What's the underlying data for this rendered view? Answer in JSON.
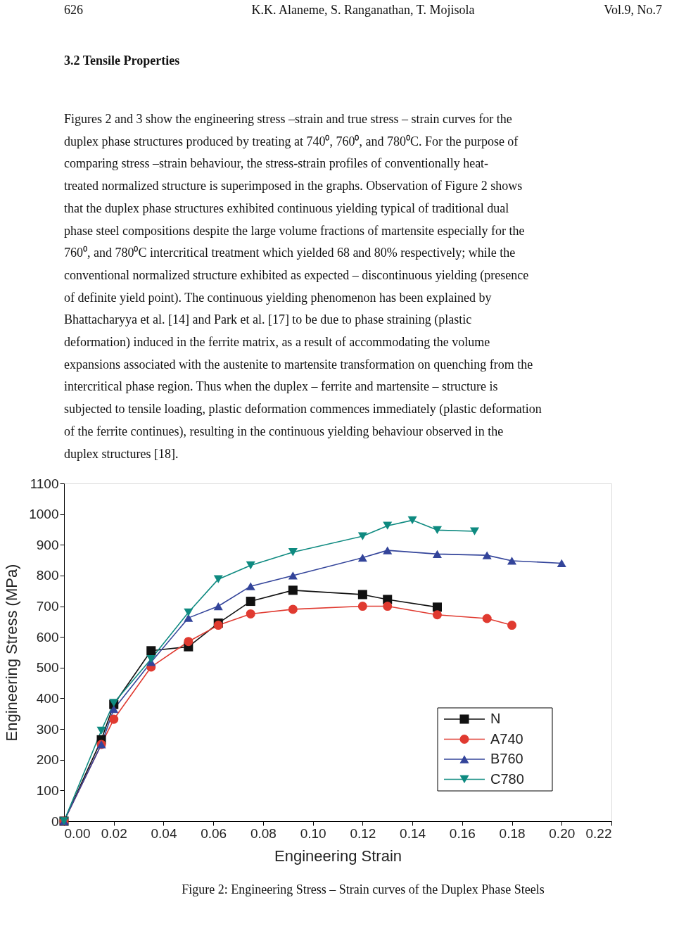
{
  "chart_data": {
    "type": "line",
    "xlabel": "Engineering Strain",
    "ylabel": "Engineering Stress (MPa)",
    "annotations": [
      "626",
      "K.K. Alaneme, S. Ranganathan, T. Mojisola",
      "Vol.9, No.7",
      "3.2 Tensile Properties",
      "Figures 2 and 3 show the engineering stress –strain and true stress – strain curves for the duplex phase structures produced by treating at 740⁰, 760⁰, and 780⁰C. For the purpose of comparing stress –strain behaviour, the stress-strain profiles of conventionally heat-treated normalized structure is superimposed in the graphs. Observation of Figure 2 shows that the duplex phase structures exhibited continuous yielding typical of traditional dual phase steel compositions despite the large volume fractions of martensite especially for the 760⁰, and 780⁰C intercritical treatment which yielded 68 and 80% respectively; while the conventional normalized structure exhibited as expected – discontinuous yielding (presence of definite yield point). The continuous yielding phenomenon has been explained by Bhattacharyya et al. [14]  and Park et al. [17] to be due to phase straining (plastic deformation) induced in the ferrite matrix, as a result of accommodating the volume expansions associated with the austenite to martensite transformation on quenching from the intercritical phase region. Thus when the duplex – ferrite and martensite – structure is subjected to tensile loading, plastic deformation commences immediately (plastic deformation of the ferrite continues), resulting in the continuous yielding behaviour observed in the duplex structures [18].",
      "Figure 2: Engineering Stress – Strain curves of the Duplex Phase Steels"
    ],
    "xlim": [
      0,
      0.22
    ],
    "ylim": [
      0,
      1100
    ],
    "xticks": [
      {
        "value": 0,
        "label": "0.00"
      },
      0.02,
      0.04,
      0.06,
      0.08,
      {
        "value": 0.1,
        "label": "0.10"
      },
      0.12,
      0.14,
      0.16,
      0.18,
      {
        "value": 0.2,
        "label": "0.20"
      },
      0.22
    ],
    "yticks": [
      0,
      100,
      200,
      300,
      400,
      500,
      600,
      700,
      800,
      900,
      1000,
      1100
    ],
    "grid": false,
    "legend": "bottom right",
    "line_style": "solid",
    "series": [
      {
        "name": "N",
        "color": "#111111",
        "marker": "square",
        "x": [
          0,
          0.015,
          0.02,
          0.035,
          0.05,
          0.062,
          0.075,
          0.092,
          0.12,
          0.13,
          0.15
        ],
        "values": [
          0,
          265,
          380,
          555,
          568,
          645,
          716,
          752,
          738,
          722,
          697
        ]
      },
      {
        "name": "A740",
        "color": "#e03a30",
        "marker": "circle",
        "x": [
          0,
          0.015,
          0.02,
          0.035,
          0.05,
          0.062,
          0.075,
          0.092,
          0.12,
          0.13,
          0.15,
          0.17,
          0.18
        ],
        "values": [
          0,
          250,
          332,
          502,
          585,
          638,
          675,
          690,
          700,
          700,
          672,
          660,
          638
        ]
      },
      {
        "name": "B760",
        "color": "#33449a",
        "marker": "triangle",
        "x": [
          0,
          0.015,
          0.02,
          0.035,
          0.05,
          0.062,
          0.075,
          0.092,
          0.12,
          0.13,
          0.15,
          0.17,
          0.18,
          0.2
        ],
        "values": [
          0,
          250,
          365,
          518,
          662,
          700,
          765,
          800,
          858,
          882,
          870,
          866,
          848,
          840
        ]
      },
      {
        "name": "C780",
        "color": "#0e8a80",
        "marker": "triangle-down",
        "x": [
          0,
          0.015,
          0.02,
          0.035,
          0.05,
          0.062,
          0.075,
          0.092,
          0.12,
          0.13,
          0.14,
          0.15,
          0.165
        ],
        "values": [
          0,
          295,
          385,
          528,
          680,
          788,
          833,
          876,
          928,
          962,
          980,
          948,
          944
        ]
      }
    ]
  }
}
